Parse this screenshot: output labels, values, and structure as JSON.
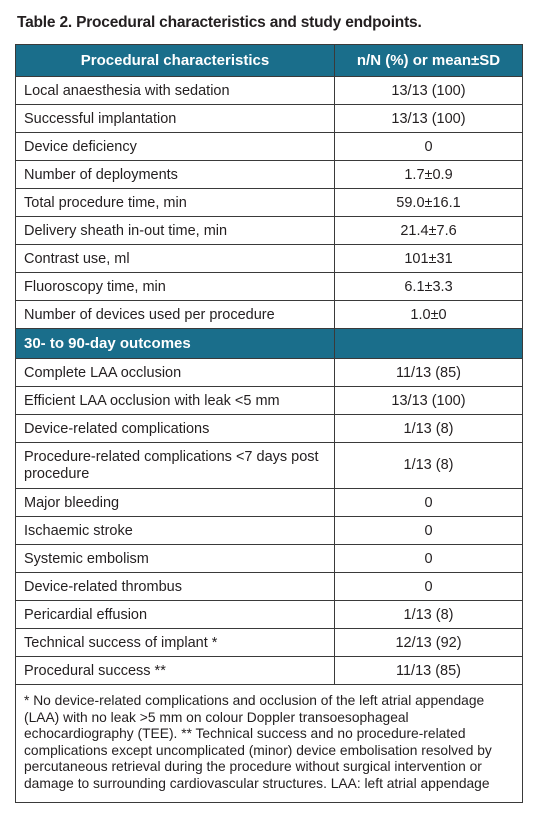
{
  "title": "Table 2. Procedural characteristics and study endpoints.",
  "header": {
    "col1": "Procedural characteristics",
    "col2": "n/N (%) or mean±SD"
  },
  "procedural_rows": [
    {
      "label": "Local anaesthesia with sedation",
      "value": "13/13 (100)"
    },
    {
      "label": "Successful implantation",
      "value": "13/13 (100)"
    },
    {
      "label": "Device deficiency",
      "value": "0"
    },
    {
      "label": "Number of deployments",
      "value": "1.7±0.9"
    },
    {
      "label": "Total procedure time, min",
      "value": "59.0±16.1"
    },
    {
      "label": "Delivery sheath in-out time, min",
      "value": "21.4±7.6"
    },
    {
      "label": "Contrast use, ml",
      "value": "101±31"
    },
    {
      "label": "Fluoroscopy time, min",
      "value": "6.1±3.3"
    },
    {
      "label": "Number of devices used per procedure",
      "value": "1.0±0"
    }
  ],
  "section2": {
    "title": "30- to 90-day outcomes"
  },
  "outcome_rows": [
    {
      "label": "Complete LAA occlusion",
      "value": "11/13 (85)"
    },
    {
      "label": "Efficient LAA occlusion with leak <5 mm",
      "value": "13/13 (100)"
    },
    {
      "label": "Device-related complications",
      "value": "1/13 (8)"
    },
    {
      "label": "Procedure-related complications <7 days post procedure",
      "value": "1/13 (8)"
    },
    {
      "label": "Major bleeding",
      "value": "0"
    },
    {
      "label": "Ischaemic stroke",
      "value": "0"
    },
    {
      "label": "Systemic embolism",
      "value": "0"
    },
    {
      "label": "Device-related thrombus",
      "value": "0"
    },
    {
      "label": "Pericardial effusion",
      "value": "1/13 (8)"
    },
    {
      "label": "Technical success of implant *",
      "value": "12/13 (92)"
    },
    {
      "label": "Procedural success **",
      "value": "11/13 (85)"
    }
  ],
  "footnote": "* No device-related complications and occlusion of the left atrial appendage (LAA) with no leak >5 mm on colour Doppler transoesophageal echocardiography (TEE). ** Technical success and no procedure-related complications except uncomplicated (minor) device embolisation resolved by percutaneous retrieval during the procedure without surgical intervention or damage to surrounding cardiovascular structures. LAA: left atrial appendage"
}
